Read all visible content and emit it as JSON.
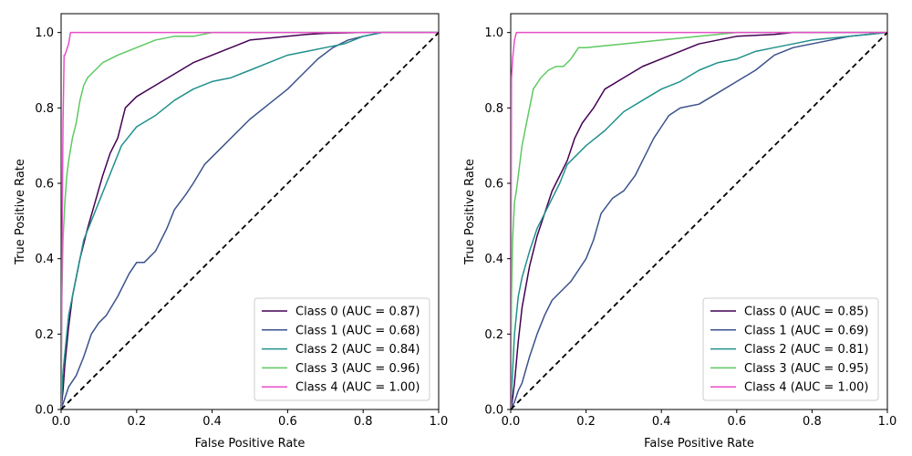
{
  "chart_data": [
    {
      "type": "line",
      "title": "",
      "xlabel": "False Positive Rate",
      "ylabel": "True Positive Rate",
      "xlim": [
        0,
        1
      ],
      "ylim": [
        0,
        1
      ],
      "xticks": [
        "0.0",
        "0.2",
        "0.4",
        "0.6",
        "0.8",
        "1.0"
      ],
      "yticks": [
        "0.0",
        "0.2",
        "0.4",
        "0.6",
        "0.8",
        "1.0"
      ],
      "legend_position": "lower-right",
      "diagonal": {
        "x": [
          0,
          1
        ],
        "y": [
          0,
          1
        ],
        "color": "#000000",
        "style": "dashed"
      },
      "series": [
        {
          "name": "Class 0 (AUC = 0.87)",
          "color": "#440154",
          "x": [
            0,
            0.005,
            0.01,
            0.02,
            0.03,
            0.05,
            0.07,
            0.09,
            0.11,
            0.13,
            0.15,
            0.17,
            0.2,
            0.25,
            0.3,
            0.35,
            0.4,
            0.45,
            0.5,
            0.55,
            0.6,
            0.65,
            0.7,
            0.8,
            0.86,
            1.0
          ],
          "y": [
            0,
            0.05,
            0.12,
            0.22,
            0.3,
            0.4,
            0.48,
            0.55,
            0.62,
            0.68,
            0.72,
            0.8,
            0.83,
            0.86,
            0.89,
            0.92,
            0.94,
            0.96,
            0.98,
            0.985,
            0.99,
            0.995,
            0.998,
            1.0,
            1.0,
            1.0
          ]
        },
        {
          "name": "Class 1 (AUC = 0.68)",
          "color": "#3b528b",
          "x": [
            0,
            0.01,
            0.02,
            0.04,
            0.06,
            0.08,
            0.1,
            0.12,
            0.15,
            0.18,
            0.2,
            0.22,
            0.25,
            0.28,
            0.3,
            0.33,
            0.35,
            0.38,
            0.4,
            0.42,
            0.45,
            0.48,
            0.5,
            0.55,
            0.6,
            0.63,
            0.68,
            0.72,
            0.76,
            0.8,
            0.85,
            1.0
          ],
          "y": [
            0,
            0.03,
            0.06,
            0.09,
            0.14,
            0.2,
            0.23,
            0.25,
            0.3,
            0.36,
            0.39,
            0.39,
            0.42,
            0.48,
            0.53,
            0.57,
            0.6,
            0.65,
            0.67,
            0.69,
            0.72,
            0.75,
            0.77,
            0.81,
            0.85,
            0.88,
            0.93,
            0.96,
            0.98,
            0.99,
            1.0,
            1.0
          ]
        },
        {
          "name": "Class 2 (AUC = 0.84)",
          "color": "#21918c",
          "x": [
            0,
            0.005,
            0.01,
            0.02,
            0.04,
            0.06,
            0.08,
            0.1,
            0.12,
            0.14,
            0.16,
            0.2,
            0.25,
            0.3,
            0.35,
            0.4,
            0.45,
            0.5,
            0.55,
            0.6,
            0.65,
            0.7,
            0.75,
            0.8,
            0.85,
            1.0
          ],
          "y": [
            0,
            0.1,
            0.15,
            0.25,
            0.35,
            0.45,
            0.5,
            0.55,
            0.6,
            0.65,
            0.7,
            0.75,
            0.78,
            0.82,
            0.85,
            0.87,
            0.88,
            0.9,
            0.92,
            0.94,
            0.95,
            0.96,
            0.97,
            0.99,
            1.0,
            1.0
          ]
        },
        {
          "name": "Class 3 (AUC = 0.96)",
          "color": "#5ec962",
          "x": [
            0,
            0.002,
            0.005,
            0.01,
            0.015,
            0.02,
            0.03,
            0.04,
            0.05,
            0.06,
            0.07,
            0.09,
            0.11,
            0.13,
            0.15,
            0.2,
            0.25,
            0.3,
            0.35,
            0.4,
            0.5,
            0.6,
            0.7,
            1.0
          ],
          "y": [
            0,
            0.3,
            0.45,
            0.55,
            0.62,
            0.66,
            0.72,
            0.76,
            0.82,
            0.86,
            0.88,
            0.9,
            0.92,
            0.93,
            0.94,
            0.96,
            0.98,
            0.99,
            0.99,
            1.0,
            1.0,
            1.0,
            1.0,
            1.0
          ]
        },
        {
          "name": "Class 4 (AUC = 1.00)",
          "color": "#e64fc8",
          "x": [
            0,
            0.003,
            0.005,
            0.008,
            0.01,
            0.02,
            0.025,
            0.04,
            1.0
          ],
          "y": [
            0,
            0.5,
            0.76,
            0.94,
            0.94,
            0.97,
            1.0,
            1.0,
            1.0
          ]
        }
      ]
    },
    {
      "type": "line",
      "title": "",
      "xlabel": "False Positive Rate",
      "ylabel": "True Positive Rate",
      "xlim": [
        0,
        1
      ],
      "ylim": [
        0,
        1
      ],
      "xticks": [
        "0.0",
        "0.2",
        "0.4",
        "0.6",
        "0.8",
        "1.0"
      ],
      "yticks": [
        "0.0",
        "0.2",
        "0.4",
        "0.6",
        "0.8",
        "1.0"
      ],
      "legend_position": "lower-right",
      "diagonal": {
        "x": [
          0,
          1
        ],
        "y": [
          0,
          1
        ],
        "color": "#000000",
        "style": "dashed"
      },
      "series": [
        {
          "name": "Class 0 (AUC = 0.85)",
          "color": "#440154",
          "x": [
            0,
            0.005,
            0.01,
            0.02,
            0.03,
            0.05,
            0.07,
            0.09,
            0.11,
            0.13,
            0.15,
            0.17,
            0.19,
            0.22,
            0.25,
            0.3,
            0.35,
            0.4,
            0.45,
            0.5,
            0.55,
            0.6,
            0.7,
            0.75,
            1.0
          ],
          "y": [
            0,
            0.03,
            0.07,
            0.18,
            0.27,
            0.38,
            0.46,
            0.52,
            0.58,
            0.62,
            0.66,
            0.72,
            0.76,
            0.8,
            0.85,
            0.88,
            0.91,
            0.93,
            0.95,
            0.97,
            0.98,
            0.99,
            0.995,
            1.0,
            1.0
          ]
        },
        {
          "name": "Class 1 (AUC = 0.69)",
          "color": "#3b528b",
          "x": [
            0,
            0.01,
            0.02,
            0.03,
            0.05,
            0.07,
            0.09,
            0.11,
            0.13,
            0.16,
            0.18,
            0.2,
            0.22,
            0.24,
            0.27,
            0.3,
            0.33,
            0.35,
            0.38,
            0.4,
            0.42,
            0.45,
            0.5,
            0.55,
            0.6,
            0.65,
            0.7,
            0.75,
            0.8,
            0.9,
            1.0
          ],
          "y": [
            0,
            0.02,
            0.05,
            0.07,
            0.14,
            0.2,
            0.25,
            0.29,
            0.31,
            0.34,
            0.37,
            0.4,
            0.45,
            0.52,
            0.56,
            0.58,
            0.62,
            0.66,
            0.72,
            0.75,
            0.78,
            0.8,
            0.81,
            0.84,
            0.87,
            0.9,
            0.94,
            0.96,
            0.97,
            0.99,
            1.0
          ]
        },
        {
          "name": "Class 2 (AUC = 0.81)",
          "color": "#21918c",
          "x": [
            0,
            0.005,
            0.01,
            0.02,
            0.03,
            0.05,
            0.07,
            0.09,
            0.11,
            0.13,
            0.15,
            0.18,
            0.2,
            0.25,
            0.3,
            0.35,
            0.4,
            0.45,
            0.5,
            0.55,
            0.6,
            0.65,
            0.7,
            0.75,
            0.8,
            0.9,
            1.0
          ],
          "y": [
            0,
            0.1,
            0.2,
            0.3,
            0.35,
            0.42,
            0.48,
            0.52,
            0.56,
            0.6,
            0.65,
            0.68,
            0.7,
            0.74,
            0.79,
            0.82,
            0.85,
            0.87,
            0.9,
            0.92,
            0.93,
            0.95,
            0.96,
            0.97,
            0.98,
            0.99,
            1.0
          ]
        },
        {
          "name": "Class 3 (AUC = 0.95)",
          "color": "#5ec962",
          "x": [
            0,
            0.002,
            0.005,
            0.01,
            0.015,
            0.02,
            0.03,
            0.04,
            0.05,
            0.06,
            0.08,
            0.1,
            0.12,
            0.14,
            0.16,
            0.18,
            0.2,
            0.3,
            0.4,
            0.5,
            0.6,
            1.0
          ],
          "y": [
            0,
            0.3,
            0.45,
            0.55,
            0.58,
            0.62,
            0.7,
            0.75,
            0.8,
            0.85,
            0.88,
            0.9,
            0.91,
            0.91,
            0.93,
            0.96,
            0.96,
            0.97,
            0.98,
            0.99,
            1.0,
            1.0
          ]
        },
        {
          "name": "Class 4 (AUC = 1.00)",
          "color": "#e64fc8",
          "x": [
            0,
            0.002,
            0.005,
            0.008,
            0.01,
            0.015,
            1.0
          ],
          "y": [
            0,
            0.88,
            0.93,
            0.96,
            0.98,
            1.0,
            1.0
          ]
        }
      ]
    }
  ]
}
